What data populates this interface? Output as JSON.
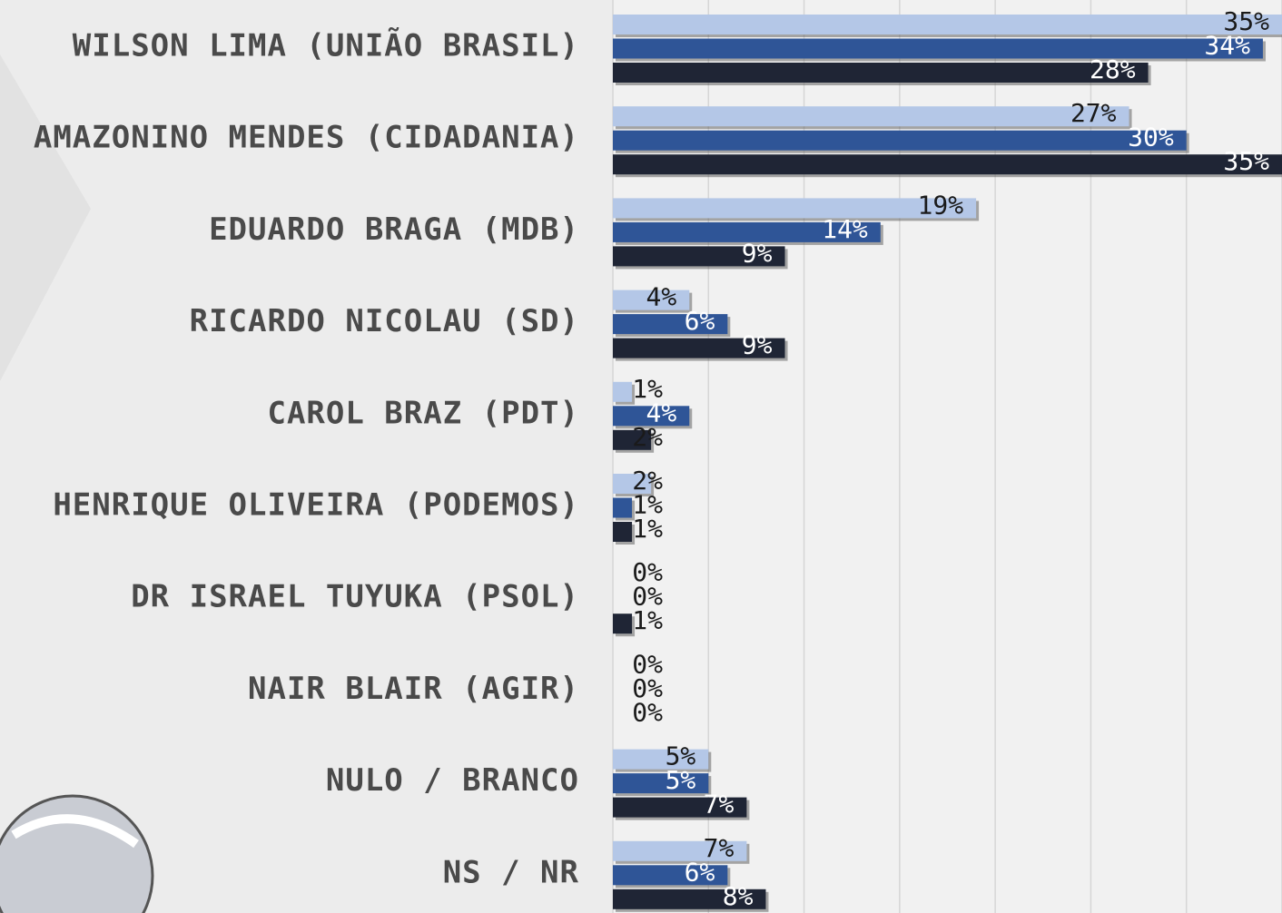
{
  "chart_data": {
    "type": "bar",
    "orientation": "horizontal",
    "categories": [
      "WILSON LIMA (UNIÃO BRASIL)",
      "AMAZONINO MENDES (CIDADANIA)",
      "EDUARDO BRAGA (MDB)",
      "RICARDO NICOLAU (SD)",
      "CAROL BRAZ (PDT)",
      "HENRIQUE OLIVEIRA (PODEMOS)",
      "DR ISRAEL TUYUKA (PSOL)",
      "NAIR BLAIR (AGIR)",
      "NULO / BRANCO",
      "NS / NR"
    ],
    "series": [
      {
        "color": "#b4c7e7",
        "values": [
          35,
          27,
          19,
          4,
          1,
          2,
          0,
          0,
          5,
          7
        ],
        "value_labels": [
          "35%",
          "27%",
          "19%",
          "4%",
          "1%",
          "2%",
          "0%",
          "0%",
          "5%",
          "7%"
        ]
      },
      {
        "color": "#2f5597",
        "values": [
          34,
          30,
          14,
          6,
          4,
          1,
          0,
          0,
          5,
          6
        ],
        "value_labels": [
          "34%",
          "30%",
          "14%",
          "6%",
          "4%",
          "1%",
          "0%",
          "0%",
          "5%",
          "6%"
        ]
      },
      {
        "color": "#1f2535",
        "values": [
          28,
          35,
          9,
          9,
          2,
          1,
          1,
          0,
          7,
          8
        ],
        "value_labels": [
          "28%",
          "35%",
          "9%",
          "9%",
          "2%",
          "1%",
          "1%",
          "0%",
          "7%",
          "8%"
        ]
      }
    ],
    "xlim": [
      0,
      35
    ],
    "xticks": [
      0,
      5,
      10,
      15,
      20,
      25,
      30,
      35
    ],
    "grid": true
  }
}
